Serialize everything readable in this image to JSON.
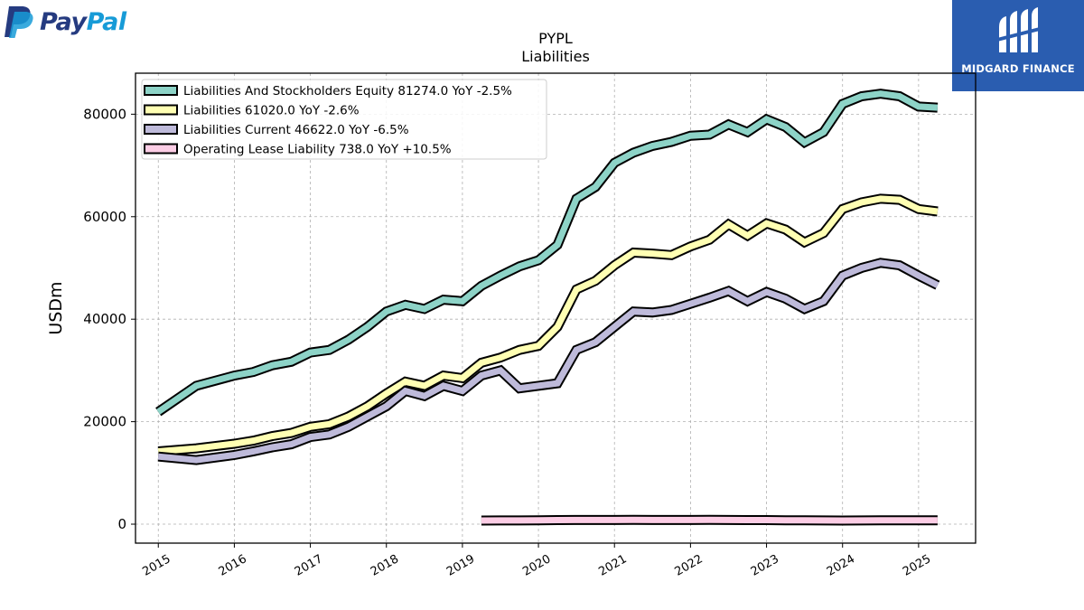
{
  "logos": {
    "paypal": {
      "pay": "Pay",
      "pal": "Pal",
      "colors": {
        "dark": "#253b80",
        "light": "#179bd7"
      }
    },
    "midgard": {
      "text": "MIDGARD FINANCE",
      "color": "#2a5db0"
    }
  },
  "chart_data": {
    "type": "line",
    "title": "PYPL",
    "subtitle": "Liabilities",
    "ylabel": "USDm",
    "xlabel": "",
    "xlim": [
      2014.7,
      2025.75
    ],
    "ylim": [
      -3700,
      88000
    ],
    "yticks": [
      0,
      20000,
      40000,
      60000,
      80000
    ],
    "ytick_labels": [
      "0",
      "20000",
      "40000",
      "60000",
      "80000"
    ],
    "xticks": [
      2015,
      2016,
      2017,
      2018,
      2019,
      2020,
      2021,
      2022,
      2023,
      2024,
      2025
    ],
    "xtick_labels": [
      "2015",
      "2016",
      "2017",
      "2018",
      "2019",
      "2020",
      "2021",
      "2022",
      "2023",
      "2024",
      "2025"
    ],
    "grid": true,
    "legend_position": "top-left",
    "series": [
      {
        "name": "Liabilities And Stockholders Equity  81274.0 YoY -2.5%",
        "color": "#8dd3c7",
        "x": [
          2015.0,
          2015.5,
          2016.0,
          2016.25,
          2016.5,
          2016.75,
          2017.0,
          2017.25,
          2017.5,
          2017.75,
          2018.0,
          2018.25,
          2018.5,
          2018.75,
          2019.0,
          2019.25,
          2019.5,
          2019.75,
          2020.0,
          2020.25,
          2020.5,
          2020.75,
          2021.0,
          2021.25,
          2021.5,
          2021.75,
          2022.0,
          2022.25,
          2022.5,
          2022.75,
          2023.0,
          2023.25,
          2023.5,
          2023.75,
          2024.0,
          2024.25,
          2024.5,
          2024.75,
          2025.0,
          2025.25
        ],
        "y": [
          21900,
          27000,
          29000,
          29700,
          31000,
          31700,
          33500,
          34000,
          36000,
          38500,
          41500,
          42800,
          42000,
          43800,
          43500,
          46500,
          48500,
          50300,
          51500,
          54500,
          63500,
          65800,
          70500,
          72500,
          73800,
          74600,
          75800,
          76000,
          78000,
          76500,
          79000,
          77500,
          74500,
          76500,
          82000,
          83500,
          84000,
          83500,
          81500,
          81274
        ]
      },
      {
        "name": "Liabilities  61020.0 YoY -2.6%",
        "color": "#ffffb3",
        "x": [
          2015.0,
          2015.5,
          2016.0,
          2016.25,
          2016.5,
          2016.75,
          2017.0,
          2017.25,
          2017.5,
          2017.75,
          2018.0,
          2018.25,
          2018.5,
          2018.75,
          2019.0,
          2019.25,
          2019.5,
          2019.75,
          2020.0,
          2020.25,
          2020.5,
          2020.75,
          2021.0,
          2021.25,
          2021.5,
          2021.75,
          2022.0,
          2022.25,
          2022.5,
          2022.75,
          2023.0,
          2023.25,
          2023.5,
          2023.75,
          2024.0,
          2024.25,
          2024.5,
          2024.75,
          2025.0,
          2025.25
        ],
        "y": [
          14200,
          14800,
          15700,
          16300,
          17200,
          17800,
          19000,
          19500,
          21000,
          23000,
          25500,
          27800,
          27000,
          29000,
          28500,
          31500,
          32500,
          34000,
          34800,
          38500,
          45800,
          47500,
          50500,
          53000,
          52800,
          52500,
          54200,
          55500,
          58500,
          56300,
          58700,
          57500,
          55000,
          56800,
          61500,
          62800,
          63500,
          63300,
          61500,
          61020
        ]
      },
      {
        "name": "Liabilities Current  46622.0 YoY -6.5%",
        "color": "#bebada",
        "x": [
          2015.0,
          2015.5,
          2016.0,
          2016.25,
          2016.5,
          2016.75,
          2017.0,
          2017.25,
          2017.5,
          2017.75,
          2018.0,
          2018.25,
          2018.5,
          2018.75,
          2019.0,
          2019.25,
          2019.5,
          2019.75,
          2020.0,
          2020.25,
          2020.5,
          2020.75,
          2021.0,
          2021.25,
          2021.5,
          2021.75,
          2022.0,
          2022.25,
          2022.5,
          2022.75,
          2023.0,
          2023.25,
          2023.5,
          2023.75,
          2024.0,
          2024.25,
          2024.5,
          2024.75,
          2025.0,
          2025.25
        ],
        "y": [
          13200,
          12500,
          13500,
          14200,
          15000,
          15600,
          17000,
          17500,
          19000,
          21000,
          23000,
          26000,
          25000,
          27000,
          26000,
          29000,
          30000,
          26500,
          27000,
          27500,
          34000,
          35500,
          38500,
          41500,
          41300,
          41800,
          43000,
          44200,
          45500,
          43500,
          45300,
          44000,
          42000,
          43500,
          48500,
          50000,
          51000,
          50500,
          48500,
          46622
        ]
      },
      {
        "name": "Operating Lease Liability  738.0 YoY +10.5%",
        "color": "#fccde5",
        "x": [
          2019.25,
          2019.5,
          2019.75,
          2020.0,
          2020.25,
          2020.5,
          2020.75,
          2021.0,
          2021.25,
          2021.5,
          2021.75,
          2022.0,
          2022.25,
          2022.5,
          2022.75,
          2023.0,
          2023.25,
          2023.5,
          2023.75,
          2024.0,
          2024.25,
          2024.5,
          2024.75,
          2025.0,
          2025.25
        ],
        "y": [
          700,
          720,
          720,
          740,
          800,
          810,
          810,
          820,
          830,
          820,
          810,
          820,
          830,
          810,
          800,
          790,
          770,
          750,
          720,
          700,
          720,
          750,
          760,
          740,
          738
        ]
      }
    ]
  }
}
